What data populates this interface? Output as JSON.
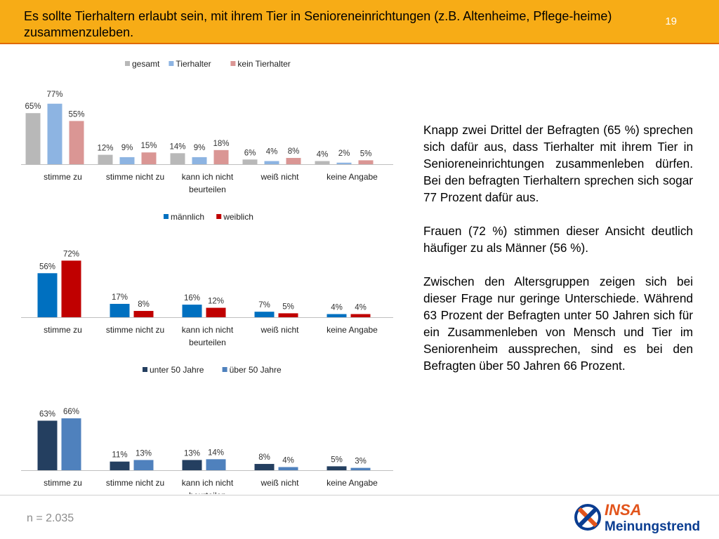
{
  "header": {
    "title": "Es sollte Tierhaltern erlaubt sein, mit ihrem Tier in Senioreneinrichtungen (z.B. Altenheime, Pflege-heime) zusammenzuleben.",
    "page_number": "19"
  },
  "chart_data": [
    {
      "type": "bar",
      "categories": [
        "stimme zu",
        "stimme nicht zu",
        "kann ich nicht beurteilen",
        "weiß nicht",
        "keine Angabe"
      ],
      "series": [
        {
          "name": "gesamt",
          "values": [
            65,
            12,
            14,
            6,
            4
          ],
          "labels": [
            "65%",
            "12%",
            "14%",
            "6%",
            "4%"
          ],
          "color": "#b8b8b8"
        },
        {
          "name": "Tierhalter",
          "values": [
            77,
            9,
            9,
            4,
            2
          ],
          "labels": [
            "77%",
            "9%",
            "9%",
            "4%",
            "2%"
          ],
          "color": "#8db4e2"
        },
        {
          "name": "kein Tierhalter",
          "values": [
            55,
            15,
            18,
            8,
            5
          ],
          "labels": [
            "55%",
            "15%",
            "18%",
            "8%",
            "5%"
          ],
          "color": "#da9694"
        }
      ],
      "ylim": [
        0,
        80
      ],
      "legend": "top"
    },
    {
      "type": "bar",
      "categories": [
        "stimme zu",
        "stimme nicht zu",
        "kann ich nicht beurteilen",
        "weiß nicht",
        "keine Angabe"
      ],
      "series": [
        {
          "name": "männlich",
          "values": [
            56,
            17,
            16,
            7,
            4
          ],
          "labels": [
            "56%",
            "17%",
            "16%",
            "7%",
            "4%"
          ],
          "color": "#0070c0"
        },
        {
          "name": "weiblich",
          "values": [
            72,
            8,
            12,
            5,
            4
          ],
          "labels": [
            "72%",
            "8%",
            "12%",
            "5%",
            "4%"
          ],
          "color": "#c00000"
        }
      ],
      "ylim": [
        0,
        80
      ],
      "legend": "top"
    },
    {
      "type": "bar",
      "categories": [
        "stimme zu",
        "stimme nicht zu",
        "kann ich nicht beurteilen",
        "weiß nicht",
        "keine Angabe"
      ],
      "series": [
        {
          "name": "unter 50 Jahre",
          "values": [
            63,
            11,
            13,
            8,
            5
          ],
          "labels": [
            "63%",
            "11%",
            "13%",
            "8%",
            "5%"
          ],
          "color": "#243f60"
        },
        {
          "name": "über 50 Jahre",
          "values": [
            66,
            13,
            14,
            4,
            3
          ],
          "labels": [
            "66%",
            "13%",
            "14%",
            "4%",
            "3%"
          ],
          "color": "#4f81bd"
        }
      ],
      "ylim": [
        0,
        80
      ],
      "legend": "top"
    }
  ],
  "text": {
    "p1": "Knapp zwei Drittel der Befragten (65 %) sprechen sich dafür aus, dass Tierhalter mit ihrem Tier in Senioreneinrichtungen zusammenleben dürfen. Bei den befragten Tierhaltern sprechen sich sogar 77 Prozent dafür aus.",
    "p2": "Frauen (72 %) stimmen dieser Ansicht deutlich häufiger zu als Männer (56 %).",
    "p3": "Zwischen den Altersgruppen zeigen sich bei dieser Frage nur geringe Unterschiede. Während 63 Prozent der Befragten unter 50 Jahren sich für ein Zusammenleben von Mensch und Tier im Seniorenheim aussprechen, sind es bei den Befragten über 50 Jahren 66 Prozent."
  },
  "footer": {
    "sample": "n = 2.035",
    "logo_top": "INSA",
    "logo_bottom": "Meinungstrend",
    "logo_color": "#0a3d91",
    "logo_accent": "#e2541b"
  }
}
